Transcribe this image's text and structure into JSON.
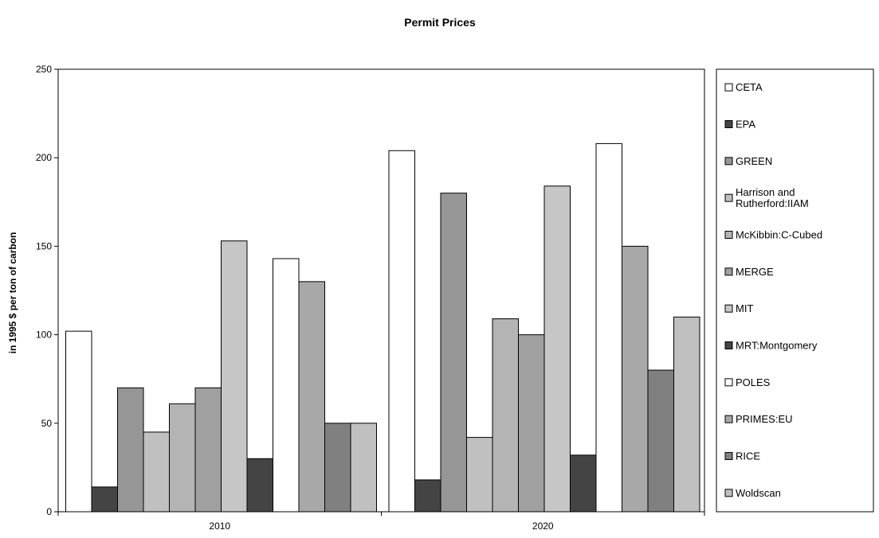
{
  "chart_data": {
    "type": "bar",
    "title": "Permit Prices",
    "xlabel": "",
    "ylabel": "in 1995 $ per ton of carbon",
    "categories": [
      "2010",
      "2020"
    ],
    "ylim": [
      0,
      250
    ],
    "yticks": [
      0,
      50,
      100,
      150,
      200,
      250
    ],
    "grid": false,
    "legend_position": "right",
    "series": [
      {
        "name": "CETA",
        "values": [
          102,
          204
        ],
        "color": "#ffffff"
      },
      {
        "name": "EPA",
        "values": [
          14,
          18
        ],
        "color": "#444444"
      },
      {
        "name": "GREEN",
        "values": [
          70,
          180
        ],
        "color": "#969696"
      },
      {
        "name": "Harrison and Rutherford:IIAM",
        "values": [
          45,
          42
        ],
        "color": "#c0c0c0"
      },
      {
        "name": "McKibbin:C-Cubed",
        "values": [
          61,
          109
        ],
        "color": "#b4b4b4"
      },
      {
        "name": "MERGE",
        "values": [
          70,
          100
        ],
        "color": "#a0a0a0"
      },
      {
        "name": "MIT",
        "values": [
          153,
          184
        ],
        "color": "#c6c6c6"
      },
      {
        "name": "MRT:Montgomery",
        "values": [
          30,
          32
        ],
        "color": "#444444"
      },
      {
        "name": "POLES",
        "values": [
          143,
          208
        ],
        "color": "#ffffff"
      },
      {
        "name": "PRIMES:EU",
        "values": [
          130,
          150
        ],
        "color": "#a8a8a8"
      },
      {
        "name": "RICE",
        "values": [
          50,
          80
        ],
        "color": "#808080"
      },
      {
        "name": "Woldscan",
        "values": [
          50,
          110
        ],
        "color": "#c0c0c0"
      }
    ]
  }
}
